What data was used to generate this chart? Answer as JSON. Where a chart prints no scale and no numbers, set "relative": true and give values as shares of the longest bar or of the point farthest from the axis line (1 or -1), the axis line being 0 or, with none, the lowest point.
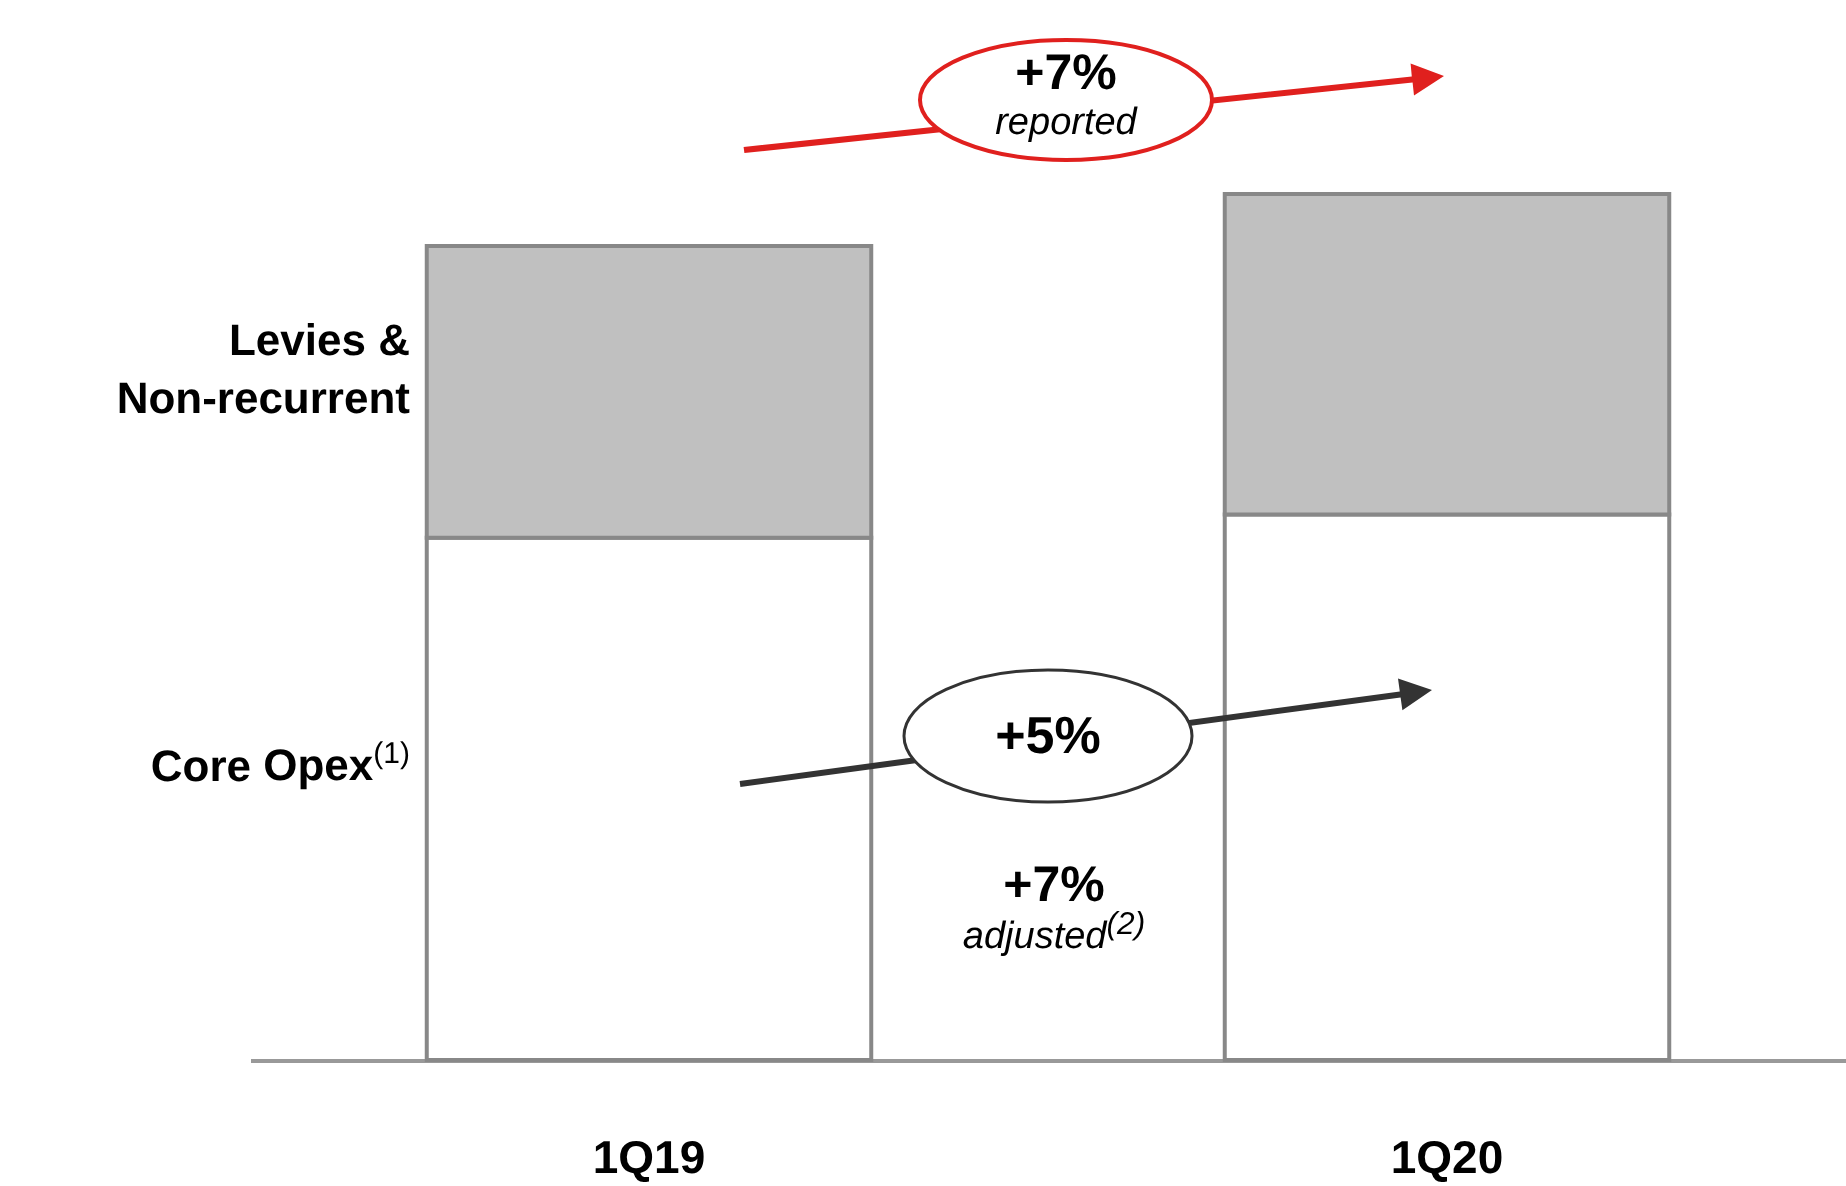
{
  "chart_data": {
    "type": "bar",
    "stacked": true,
    "relative": true,
    "legend": false,
    "categories": [
      "1Q19",
      "1Q20"
    ],
    "series": [
      {
        "name": "Core Opex$^{(1)}$",
        "color": "#ffffff",
        "values": [
          0.603,
          0.63
        ]
      },
      {
        "name": "Levies & Non-recurrent",
        "color": "#c0c0c0",
        "values": [
          0.337,
          0.37
        ]
      }
    ],
    "annotations": [
      "+7%",
      "reported",
      "+5%",
      "+7%",
      "adjusted$^{(2)}$"
    ]
  }
}
